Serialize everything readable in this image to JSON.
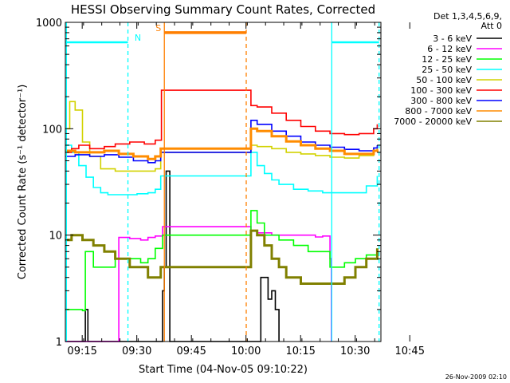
{
  "chart_data": {
    "type": "line",
    "title": "HESSI Observing Summary Count Rates, Corrected",
    "xlabel": "Start Time (04-Nov-05 09:10:22)",
    "ylabel": "Corrected Count Rate (s⁻¹ detector⁻¹)",
    "y_scale": "log",
    "ylim": [
      1,
      1000
    ],
    "xlim_minutes": [
      9.3,
      48.0
    ],
    "x_ticks": [
      "09:15",
      "09:30",
      "09:45",
      "10:00",
      "10:15",
      "10:30",
      "10:45"
    ],
    "y_ticks": [
      "1",
      "10",
      "100",
      "1000"
    ],
    "legend_header": [
      "Det 1,3,4,5,6,9,",
      "Att 0"
    ],
    "legend_placement": "right",
    "timestamp": "26-Nov-2009 02:10",
    "series": [
      {
        "name": "3 - 6 keV",
        "color": "#000000",
        "points": [
          [
            9.3,
            1
          ],
          [
            13.5,
            1
          ],
          [
            14.8,
            2.0
          ],
          [
            15.5,
            1
          ],
          [
            35.3,
            1
          ],
          [
            36.0,
            3
          ],
          [
            36.5,
            5
          ],
          [
            37,
            40
          ],
          [
            38,
            1
          ],
          [
            62.5,
            1
          ],
          [
            63.0,
            4
          ],
          [
            65,
            2.5
          ],
          [
            66,
            3
          ],
          [
            67,
            2
          ],
          [
            68,
            1
          ]
        ]
      },
      {
        "name": "6 - 12 keV",
        "color": "#ff00ff",
        "points": [
          [
            9.3,
            1
          ],
          [
            23,
            1
          ],
          [
            24,
            9.5
          ],
          [
            27,
            9.3
          ],
          [
            30,
            9.0
          ],
          [
            32,
            9.5
          ],
          [
            34,
            9.8
          ],
          [
            36,
            12
          ],
          [
            60.3,
            11
          ],
          [
            62,
            10.5
          ],
          [
            66,
            10
          ],
          [
            70,
            10
          ],
          [
            74,
            10
          ],
          [
            78,
            9.6
          ],
          [
            80,
            9.8
          ],
          [
            82,
            6
          ],
          [
            82.4,
            1
          ]
        ]
      },
      {
        "name": "12 - 25 keV",
        "color": "#00ff00",
        "points": [
          [
            9.3,
            2.0
          ],
          [
            10,
            2.0
          ],
          [
            14,
            1.95
          ],
          [
            14.8,
            7
          ],
          [
            17,
            5
          ],
          [
            20,
            5
          ],
          [
            23,
            6
          ],
          [
            27,
            6
          ],
          [
            30,
            5.5
          ],
          [
            32,
            6
          ],
          [
            34,
            7.5
          ],
          [
            36,
            10
          ],
          [
            60.3,
            17
          ],
          [
            62,
            13
          ],
          [
            64,
            10
          ],
          [
            68,
            9
          ],
          [
            72,
            8
          ],
          [
            76,
            7
          ],
          [
            80,
            7
          ],
          [
            82,
            5
          ],
          [
            86,
            5.5
          ],
          [
            89,
            6
          ],
          [
            92,
            6.5
          ],
          [
            95,
            7.5
          ]
        ]
      },
      {
        "name": "25 - 50 keV",
        "color": "#00ffff",
        "points": [
          [
            9.3,
            70
          ],
          [
            11,
            60
          ],
          [
            13,
            45
          ],
          [
            15,
            35
          ],
          [
            17,
            28
          ],
          [
            19,
            25
          ],
          [
            21,
            24
          ],
          [
            25,
            24
          ],
          [
            29,
            24.5
          ],
          [
            32,
            25
          ],
          [
            34,
            27
          ],
          [
            35.5,
            36
          ],
          [
            60.3,
            60
          ],
          [
            62,
            45
          ],
          [
            64,
            38
          ],
          [
            66,
            33
          ],
          [
            68,
            30
          ],
          [
            72,
            27
          ],
          [
            76,
            26
          ],
          [
            80,
            25
          ],
          [
            84,
            25
          ],
          [
            88,
            25
          ],
          [
            92,
            29
          ],
          [
            95,
            36
          ]
        ]
      },
      {
        "name": "50 - 100 keV",
        "color": "#d2d200",
        "points": [
          [
            9.3,
            100
          ],
          [
            10.5,
            180
          ],
          [
            12,
            150
          ],
          [
            14,
            75
          ],
          [
            16,
            55
          ],
          [
            19,
            42
          ],
          [
            23,
            40
          ],
          [
            27,
            40
          ],
          [
            31,
            40
          ],
          [
            34,
            42
          ],
          [
            35.5,
            60
          ],
          [
            60.3,
            70
          ],
          [
            62,
            68
          ],
          [
            66,
            65
          ],
          [
            70,
            60
          ],
          [
            74,
            58
          ],
          [
            78,
            56
          ],
          [
            82,
            54
          ],
          [
            86,
            53
          ],
          [
            90,
            56
          ],
          [
            94,
            62
          ],
          [
            95,
            66
          ]
        ]
      },
      {
        "name": "100 - 300 keV",
        "color": "#ff0000",
        "points": [
          [
            9.3,
            60
          ],
          [
            11,
            65
          ],
          [
            13,
            70
          ],
          [
            16,
            65
          ],
          [
            20,
            68
          ],
          [
            23,
            72
          ],
          [
            27,
            75
          ],
          [
            31,
            72
          ],
          [
            34,
            78
          ],
          [
            35.7,
            230
          ],
          [
            60.3,
            165
          ],
          [
            62,
            160
          ],
          [
            66,
            140
          ],
          [
            70,
            120
          ],
          [
            74,
            105
          ],
          [
            78,
            95
          ],
          [
            82,
            90
          ],
          [
            86,
            88
          ],
          [
            90,
            90
          ],
          [
            94,
            100
          ],
          [
            95,
            110
          ]
        ]
      },
      {
        "name": "300 - 800 keV",
        "color": "#0000ff",
        "points": [
          [
            9.3,
            55
          ],
          [
            12,
            57
          ],
          [
            16,
            55
          ],
          [
            20,
            57
          ],
          [
            24,
            54
          ],
          [
            28,
            50
          ],
          [
            32,
            48
          ],
          [
            34,
            50
          ],
          [
            35.5,
            60
          ],
          [
            60.3,
            120
          ],
          [
            62,
            110
          ],
          [
            66,
            95
          ],
          [
            70,
            85
          ],
          [
            74,
            75
          ],
          [
            78,
            70
          ],
          [
            82,
            67
          ],
          [
            86,
            64
          ],
          [
            90,
            62
          ],
          [
            94,
            66
          ],
          [
            95,
            70
          ]
        ]
      },
      {
        "name": "800 - 7000 keV",
        "color": "#ff8c00",
        "points": [
          [
            9.3,
            62
          ],
          [
            12,
            60
          ],
          [
            16,
            60
          ],
          [
            20,
            62
          ],
          [
            24,
            58
          ],
          [
            28,
            55
          ],
          [
            32,
            52
          ],
          [
            34,
            55
          ],
          [
            35.5,
            65
          ],
          [
            60.3,
            100
          ],
          [
            62,
            95
          ],
          [
            66,
            85
          ],
          [
            70,
            76
          ],
          [
            74,
            70
          ],
          [
            78,
            65
          ],
          [
            82,
            62
          ],
          [
            86,
            58
          ],
          [
            90,
            58
          ],
          [
            94,
            62
          ],
          [
            95,
            64
          ]
        ]
      },
      {
        "name": "7000 - 20000 keV",
        "color": "#808000",
        "points": [
          [
            9.3,
            9
          ],
          [
            11,
            10
          ],
          [
            14,
            9
          ],
          [
            17,
            8
          ],
          [
            20,
            7
          ],
          [
            23,
            6
          ],
          [
            27,
            5
          ],
          [
            30,
            5
          ],
          [
            32,
            4
          ],
          [
            34,
            4
          ],
          [
            35.5,
            5
          ],
          [
            60.3,
            11
          ],
          [
            62,
            10
          ],
          [
            64,
            8
          ],
          [
            66,
            6
          ],
          [
            68,
            5
          ],
          [
            70,
            4
          ],
          [
            74,
            3.5
          ],
          [
            78,
            3.5
          ],
          [
            82,
            3.5
          ],
          [
            86,
            4
          ],
          [
            89,
            5
          ],
          [
            92,
            6
          ],
          [
            95,
            7.5
          ]
        ]
      }
    ],
    "flag_bars": [
      {
        "label": "",
        "color": "#00ffff",
        "y": 650,
        "x_start": 9.3,
        "x_end": 26.5
      },
      {
        "label": "N",
        "color": "#00ffff",
        "y": 650,
        "x_start": 29.2,
        "x_end": 29.2
      },
      {
        "label": "S",
        "color": "#ff7f00",
        "y": 800,
        "x_start": 36.5,
        "x_end": 59.0
      },
      {
        "label": "",
        "color": "#00ffff",
        "y": 650,
        "x_start": 82.5,
        "x_end": 95.5
      }
    ],
    "vertical_markers": [
      {
        "color": "#00ffff",
        "style": "solid",
        "x": 9.6
      },
      {
        "color": "#00ffff",
        "style": "dashed",
        "x": 26.5
      },
      {
        "color": "#ff7f00",
        "style": "solid",
        "x": 36.5
      },
      {
        "color": "#ff7f00",
        "style": "dashed",
        "x": 59.0
      },
      {
        "color": "#00ffff",
        "style": "solid",
        "x": 82.5
      },
      {
        "color": "#00ffff",
        "style": "dashed",
        "x": 95.5
      }
    ]
  }
}
